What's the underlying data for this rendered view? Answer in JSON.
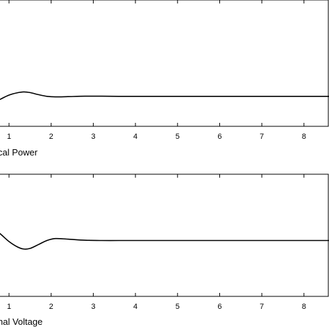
{
  "chart_data": [
    {
      "type": "line",
      "title": "",
      "xlabel": "cal Power",
      "ylabel": "",
      "xlim": [
        0,
        9
      ],
      "x_ticks": [
        1,
        2,
        3,
        4,
        5,
        6,
        7,
        8
      ],
      "x_tick_labels": [
        "1",
        "2",
        "3",
        "4",
        "5",
        "6",
        "7",
        "8"
      ],
      "y_ticks": [],
      "grid": false,
      "series": [
        {
          "x": [
            0,
            0.2,
            0.4,
            0.6,
            0.8,
            1.0,
            1.2,
            1.35,
            1.5,
            1.7,
            1.9,
            2.1,
            2.4,
            2.8,
            3.2,
            3.6,
            4.0,
            4.5,
            5.0,
            5.5,
            6.0,
            6.5,
            7.0,
            7.5,
            8.0,
            8.5,
            9.0
          ],
          "y": [
            -0.55,
            -0.28,
            0.02,
            0.34,
            0.66,
            0.95,
            1.12,
            1.18,
            1.13,
            0.98,
            0.86,
            0.82,
            0.84,
            0.87,
            0.87,
            0.86,
            0.86,
            0.86,
            0.86,
            0.86,
            0.86,
            0.86,
            0.86,
            0.86,
            0.86,
            0.86,
            0.86
          ]
        }
      ],
      "ylim": [
        -1.3,
        7.8
      ]
    },
    {
      "type": "line",
      "title": "",
      "xlabel": "nal Voltage",
      "ylabel": "",
      "xlim": [
        0,
        9
      ],
      "x_ticks": [
        1,
        2,
        3,
        4,
        5,
        6,
        7,
        8
      ],
      "x_tick_labels": [
        "1",
        "2",
        "3",
        "4",
        "5",
        "6",
        "7",
        "8"
      ],
      "y_ticks": [],
      "grid": false,
      "series": [
        {
          "x": [
            0,
            0.1,
            0.2,
            0.35,
            0.5,
            0.65,
            0.8,
            1.0,
            1.2,
            1.35,
            1.5,
            1.7,
            1.9,
            2.1,
            2.4,
            2.8,
            3.2,
            3.6,
            4.0,
            4.5,
            5.0,
            5.5,
            6.0,
            6.5,
            7.0,
            7.5,
            8.0,
            8.5,
            9.0
          ],
          "y": [
            0.35,
            0.55,
            0.72,
            0.78,
            0.7,
            0.42,
            0.08,
            -0.42,
            -0.78,
            -0.92,
            -0.88,
            -0.62,
            -0.35,
            -0.22,
            -0.26,
            -0.33,
            -0.35,
            -0.35,
            -0.35,
            -0.35,
            -0.35,
            -0.35,
            -0.35,
            -0.35,
            -0.35,
            -0.35,
            -0.35,
            -0.35,
            -0.35
          ]
        }
      ],
      "ylim": [
        -4.1,
        4.1
      ]
    }
  ]
}
